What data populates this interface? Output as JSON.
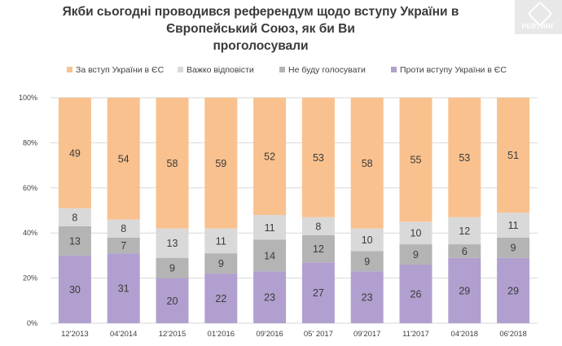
{
  "title_lines": [
    "Якби сьогодні проводився референдум щодо вступу України в Європейський Союз, як би Ви",
    "проголосували"
  ],
  "logo": {
    "text": "РЕЙТИНГ"
  },
  "colors": {
    "for": "#f9c18e",
    "difficult": "#d9d9d9",
    "not_vote": "#b4b4b4",
    "against": "#b1a0cf",
    "grid": "#d9d9d9",
    "axis_text": "#404040",
    "label_text": "#3a3a3a"
  },
  "chart_data": {
    "type": "bar",
    "stacked": true,
    "title": "Якби сьогодні проводився референдум щодо вступу України в Європейський Союз, як би Ви проголосували",
    "categories": [
      "12'2013",
      "04'2014",
      "12'2015",
      "01'2016",
      "09'2016",
      "05' 2017",
      "09'2017",
      "11'2017",
      "04'2018",
      "06'2018"
    ],
    "series": [
      {
        "key": "against",
        "name": "Проти вступу України в ЄС",
        "values": [
          30,
          31,
          20,
          22,
          23,
          27,
          23,
          26,
          29,
          29
        ]
      },
      {
        "key": "not_vote",
        "name": "Не буду голосувати",
        "values": [
          13,
          7,
          9,
          9,
          14,
          12,
          9,
          9,
          6,
          9
        ]
      },
      {
        "key": "difficult",
        "name": "Важко відповісти",
        "values": [
          8,
          8,
          13,
          11,
          11,
          8,
          10,
          10,
          12,
          11
        ]
      },
      {
        "key": "for",
        "name": "За вступ України в ЄС",
        "values": [
          49,
          54,
          58,
          59,
          52,
          53,
          58,
          55,
          53,
          51
        ]
      }
    ],
    "legend_order": [
      "for",
      "difficult",
      "not_vote",
      "against"
    ],
    "legend_position": "top",
    "y_ticks": [
      "0%",
      "20%",
      "40%",
      "60%",
      "80%",
      "100%"
    ],
    "ylim": [
      0,
      100
    ],
    "xlabel": "",
    "ylabel": ""
  }
}
